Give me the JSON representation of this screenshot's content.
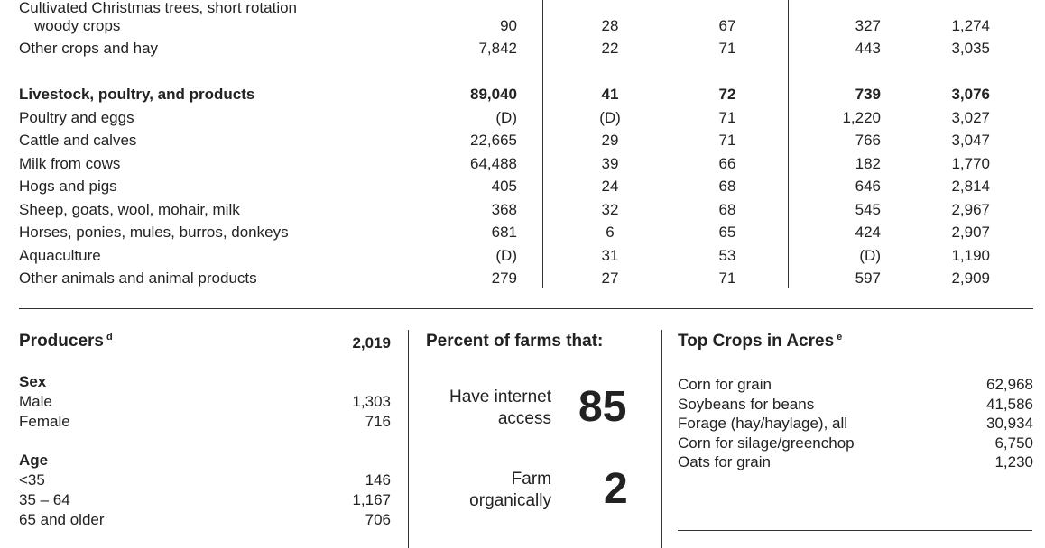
{
  "commodity_table": {
    "rows": [
      {
        "label": "Cultivated Christmas trees, short rotation",
        "bold": false,
        "indent": false,
        "values": [
          "",
          "",
          "",
          "",
          ""
        ]
      },
      {
        "label": "woody crops",
        "bold": false,
        "indent": true,
        "values": [
          "90",
          "28",
          "67",
          "327",
          "1,274"
        ]
      },
      {
        "label": "Other crops and hay",
        "bold": false,
        "indent": false,
        "values": [
          "7,842",
          "22",
          "71",
          "443",
          "3,035"
        ]
      },
      {
        "label": "Livestock, poultry, and products",
        "bold": true,
        "indent": false,
        "values": [
          "89,040",
          "41",
          "72",
          "739",
          "3,076"
        ]
      },
      {
        "label": "Poultry and eggs",
        "bold": false,
        "indent": false,
        "values": [
          "(D)",
          "(D)",
          "71",
          "1,220",
          "3,027"
        ]
      },
      {
        "label": "Cattle and calves",
        "bold": false,
        "indent": false,
        "values": [
          "22,665",
          "29",
          "71",
          "766",
          "3,047"
        ]
      },
      {
        "label": "Milk from cows",
        "bold": false,
        "indent": false,
        "values": [
          "64,488",
          "39",
          "66",
          "182",
          "1,770"
        ]
      },
      {
        "label": "Hogs and pigs",
        "bold": false,
        "indent": false,
        "values": [
          "405",
          "24",
          "68",
          "646",
          "2,814"
        ]
      },
      {
        "label": "Sheep, goats, wool, mohair, milk",
        "bold": false,
        "indent": false,
        "values": [
          "368",
          "32",
          "68",
          "545",
          "2,967"
        ]
      },
      {
        "label": "Horses, ponies, mules, burros, donkeys",
        "bold": false,
        "indent": false,
        "values": [
          "681",
          "6",
          "65",
          "424",
          "2,907"
        ]
      },
      {
        "label": "Aquaculture",
        "bold": false,
        "indent": false,
        "values": [
          "(D)",
          "31",
          "53",
          "(D)",
          "1,190"
        ]
      },
      {
        "label": "Other animals and animal products",
        "bold": false,
        "indent": false,
        "values": [
          "279",
          "27",
          "71",
          "597",
          "2,909"
        ]
      }
    ]
  },
  "producers": {
    "title": "Producers",
    "footnote": "d",
    "total": "2,019",
    "sex": {
      "heading": "Sex",
      "items": [
        {
          "label": "Male",
          "value": "1,303"
        },
        {
          "label": "Female",
          "value": "716"
        }
      ]
    },
    "age": {
      "heading": "Age",
      "items": [
        {
          "label": "<35",
          "value": "146"
        },
        {
          "label": "35 – 64",
          "value": "1,167"
        },
        {
          "label": "65 and older",
          "value": "706"
        }
      ]
    }
  },
  "percent_farms": {
    "title": "Percent of farms that:",
    "items": [
      {
        "line1": "Have internet",
        "line2": "access",
        "value": "85"
      },
      {
        "line1": "Farm",
        "line2": "organically",
        "value": "2"
      }
    ]
  },
  "top_crops": {
    "title": "Top Crops in Acres",
    "footnote": "e",
    "items": [
      {
        "label": "Corn for grain",
        "value": "62,968"
      },
      {
        "label": "Soybeans for beans",
        "value": "41,586"
      },
      {
        "label": "Forage (hay/haylage), all",
        "value": "30,934"
      },
      {
        "label": "Corn for silage/greenchop",
        "value": "6,750"
      },
      {
        "label": "Oats for grain",
        "value": "1,230"
      }
    ]
  }
}
